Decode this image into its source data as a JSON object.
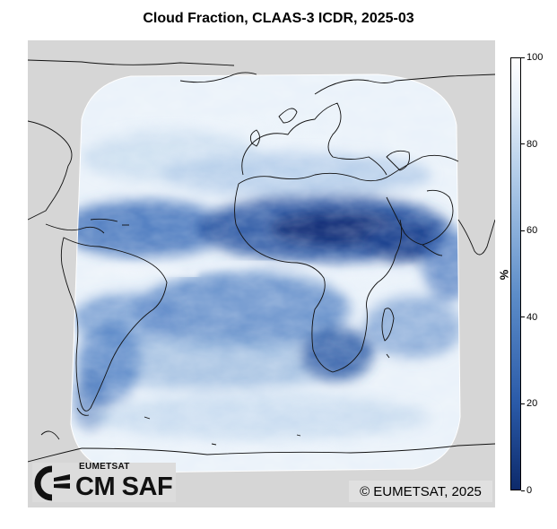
{
  "title": "Cloud Fraction, CLAAS-3 ICDR, 2025-03",
  "map": {
    "product": "Cloud Fraction",
    "dataset": "CLAAS-3 ICDR",
    "period": "2025-03",
    "colormap": [
      "#0d2a6b",
      "#2a5aa8",
      "#5c8cc8",
      "#a9c6e6",
      "#e4eef8",
      "#ffffff"
    ],
    "background_color": "#d6d6d6",
    "coastline_color": "#000000"
  },
  "colorbar": {
    "unit": "%",
    "min": 0,
    "max": 100,
    "ticks": [
      "0",
      "20",
      "40",
      "60",
      "80",
      "100"
    ]
  },
  "copyright": "© EUMETSAT, 2025",
  "logo": {
    "org": "EUMETSAT",
    "name": "CM SAF"
  }
}
